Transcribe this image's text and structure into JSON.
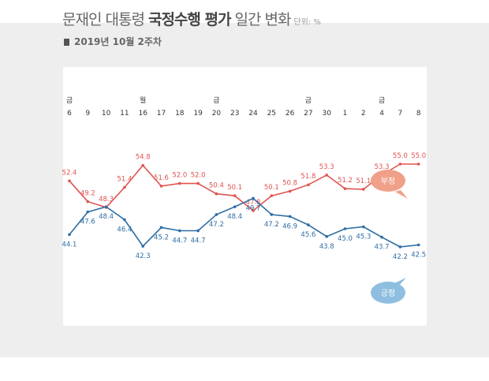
{
  "header": {
    "title_light": "문재인 대통령 ",
    "title_bold": "국정수행 평가",
    "title_light2": " 일간 변화",
    "unit": "단위: %",
    "subtitle": "2019년 10월 2주차"
  },
  "chart_data": {
    "type": "line",
    "categories": [
      "6",
      "9",
      "10",
      "11",
      "16",
      "17",
      "18",
      "19",
      "20",
      "23",
      "24",
      "25",
      "26",
      "27",
      "30",
      "1",
      "2",
      "4",
      "7",
      "8"
    ],
    "day_markers": [
      {
        "index": 0,
        "label": "금"
      },
      {
        "index": 4,
        "label": "월"
      },
      {
        "index": 8,
        "label": "금"
      },
      {
        "index": 13,
        "label": "금"
      },
      {
        "index": 17,
        "label": "금"
      }
    ],
    "series": [
      {
        "name": "부정",
        "color": "#e0534f",
        "bubble_color": "#f0a088",
        "values": [
          52.4,
          49.2,
          48.3,
          51.4,
          54.8,
          51.6,
          52.0,
          52.0,
          50.4,
          50.1,
          47.8,
          50.1,
          50.8,
          51.8,
          53.3,
          51.2,
          51.1,
          53.3,
          55.0,
          55.0
        ]
      },
      {
        "name": "긍정",
        "color": "#2e6da4",
        "bubble_color": "#8fbfe0",
        "values": [
          44.1,
          47.6,
          48.4,
          46.4,
          42.3,
          45.2,
          44.7,
          44.7,
          47.2,
          48.4,
          49.7,
          47.2,
          46.9,
          45.6,
          43.8,
          45.0,
          45.3,
          43.7,
          42.2,
          42.5
        ]
      }
    ],
    "ylim": [
      30,
      70
    ],
    "grid": false
  }
}
